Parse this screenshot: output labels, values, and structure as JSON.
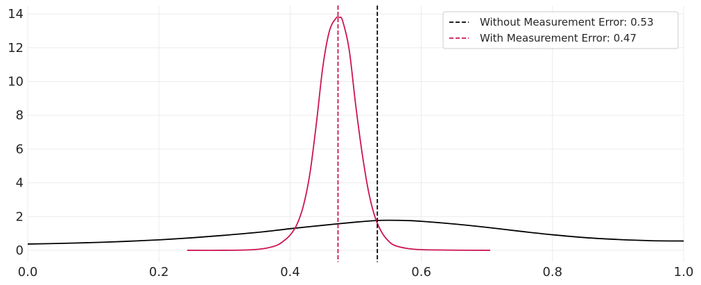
{
  "chart_data": {
    "type": "line",
    "title": "",
    "xlabel": "",
    "ylabel": "",
    "xlim": [
      0.0,
      1.0
    ],
    "ylim": [
      -0.7,
      14.5
    ],
    "grid": true,
    "legend_position": "top-right",
    "x_ticks": [
      "0.0",
      "0.2",
      "0.4",
      "0.6",
      "0.8",
      "1.0"
    ],
    "y_ticks": [
      "0",
      "2",
      "4",
      "6",
      "8",
      "10",
      "12",
      "14"
    ],
    "colors": {
      "without": "#000000",
      "with": "#cc1450",
      "grid": "#ebebeb",
      "legend_border": "#cccccc"
    },
    "series": [
      {
        "label": "without",
        "x": [
          0.0,
          0.05,
          0.1,
          0.15,
          0.2,
          0.25,
          0.3,
          0.35,
          0.4,
          0.45,
          0.5,
          0.53,
          0.55,
          0.58,
          0.6,
          0.65,
          0.7,
          0.75,
          0.8,
          0.85,
          0.9,
          0.95,
          1.0
        ],
        "y": [
          0.37,
          0.41,
          0.46,
          0.53,
          0.62,
          0.74,
          0.89,
          1.06,
          1.28,
          1.48,
          1.67,
          1.76,
          1.78,
          1.76,
          1.72,
          1.56,
          1.36,
          1.13,
          0.92,
          0.75,
          0.64,
          0.57,
          0.55
        ]
      },
      {
        "label": "with",
        "x": [
          0.243,
          0.3,
          0.34,
          0.36,
          0.38,
          0.39,
          0.4,
          0.41,
          0.42,
          0.43,
          0.44,
          0.45,
          0.46,
          0.47,
          0.475,
          0.48,
          0.49,
          0.5,
          0.51,
          0.52,
          0.53,
          0.54,
          0.55,
          0.56,
          0.58,
          0.6,
          0.65,
          0.705
        ],
        "y": [
          0.0,
          0.0,
          0.03,
          0.1,
          0.3,
          0.55,
          0.9,
          1.5,
          2.6,
          4.5,
          7.5,
          10.9,
          13.0,
          13.75,
          13.8,
          13.6,
          11.9,
          8.6,
          5.7,
          3.4,
          1.9,
          1.05,
          0.55,
          0.28,
          0.1,
          0.04,
          0.01,
          0.0
        ]
      }
    ],
    "vlines": [
      {
        "label": "without",
        "x": 0.533
      },
      {
        "label": "with",
        "x": 0.473
      }
    ],
    "legend": [
      {
        "series": "without",
        "text": "Without Measurement Error: 0.53"
      },
      {
        "series": "with",
        "text": "With Measurement Error: 0.47"
      }
    ]
  }
}
